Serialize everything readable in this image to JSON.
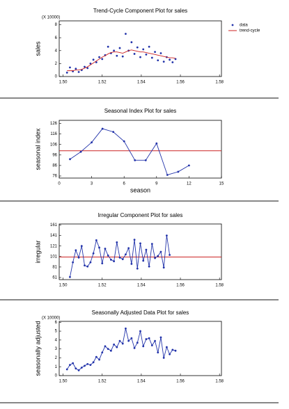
{
  "chart_data": [
    {
      "type": "line",
      "title": "Trend-Cycle Component Plot for sales",
      "ylabel": "sales",
      "y_multiplier": "(X 10000)",
      "x": [
        1.502,
        1.5035,
        1.505,
        1.5065,
        1.508,
        1.5095,
        1.511,
        1.5125,
        1.514,
        1.5155,
        1.517,
        1.5185,
        1.52,
        1.5215,
        1.523,
        1.5245,
        1.526,
        1.5275,
        1.529,
        1.5305,
        1.532,
        1.5335,
        1.535,
        1.5365,
        1.538,
        1.5395,
        1.541,
        1.5425,
        1.544,
        1.5455,
        1.547,
        1.5485,
        1.55,
        1.5515,
        1.553,
        1.5545,
        1.556,
        1.5575
      ],
      "series": [
        {
          "name": "data",
          "color": "#2233aa",
          "mode": "markers",
          "values": [
            0.6,
            1.4,
            0.8,
            1.2,
            0.7,
            1.0,
            1.5,
            1.3,
            2.0,
            2.6,
            2.2,
            3.0,
            2.7,
            3.3,
            4.6,
            3.6,
            4.0,
            3.2,
            4.4,
            3.1,
            6.6,
            4.0,
            5.3,
            3.5,
            4.5,
            3.0,
            4.2,
            3.4,
            4.6,
            2.9,
            3.8,
            2.5,
            3.6,
            2.3,
            3.0,
            2.6,
            2.2,
            2.7
          ]
        },
        {
          "name": "trend-cycle",
          "color": "#cc2222",
          "mode": "lines",
          "values": [
            0.9,
            0.9,
            0.9,
            1.0,
            1.0,
            1.1,
            1.3,
            1.5,
            1.8,
            2.1,
            2.4,
            2.7,
            3.0,
            3.2,
            3.5,
            3.7,
            3.8,
            3.8,
            3.7,
            3.6,
            3.8,
            4.0,
            4.1,
            4.0,
            3.9,
            3.8,
            3.8,
            3.7,
            3.6,
            3.5,
            3.4,
            3.3,
            3.2,
            3.1,
            3.0,
            2.9,
            2.9,
            2.8
          ]
        }
      ],
      "xlim": [
        1.498,
        1.581
      ],
      "xticks": [
        {
          "value": 1.5,
          "label": "1.50"
        },
        1.52,
        1.54,
        1.56,
        1.58
      ],
      "ylim": [
        0,
        8.6
      ],
      "yticks": [
        0,
        2,
        4,
        6,
        8
      ],
      "legend": "right"
    },
    {
      "type": "line",
      "title": "Seasonal Index Plot for sales",
      "xlabel": "season",
      "ylabel": "seasonal index",
      "x": [
        1,
        2,
        3,
        4,
        5,
        6,
        7,
        8,
        9,
        10,
        11,
        12
      ],
      "series": [
        {
          "color": "#2233aa",
          "mode": "lines+markers",
          "values": [
            92,
            99,
            108,
            121,
            118,
            109,
            91,
            91,
            107,
            77,
            80,
            86
          ]
        }
      ],
      "hline": 100,
      "hline_color": "#cc2222",
      "xlim": [
        0,
        15
      ],
      "xticks": [
        0,
        3,
        6,
        9,
        12,
        15
      ],
      "ylim": [
        74,
        129
      ],
      "yticks": [
        76,
        86,
        96,
        106,
        116,
        126
      ]
    },
    {
      "type": "line",
      "title": "Irregular Component Plot for sales",
      "ylabel": "irregular",
      "x": [
        1.5035,
        1.505,
        1.5065,
        1.508,
        1.5095,
        1.511,
        1.5125,
        1.514,
        1.5155,
        1.517,
        1.5185,
        1.52,
        1.5215,
        1.523,
        1.5245,
        1.526,
        1.5275,
        1.529,
        1.5305,
        1.532,
        1.5335,
        1.535,
        1.5365,
        1.538,
        1.5395,
        1.541,
        1.5425,
        1.544,
        1.5455,
        1.547,
        1.5485,
        1.55,
        1.5515,
        1.553,
        1.5545
      ],
      "series": [
        {
          "color": "#2233aa",
          "mode": "lines+markers",
          "values": [
            62,
            90,
            113,
            99,
            121,
            84,
            82,
            90,
            107,
            132,
            118,
            88,
            116,
            103,
            95,
            92,
            128,
            99,
            96,
            105,
            117,
            87,
            133,
            78,
            126,
            93,
            114,
            82,
            125,
            98,
            102,
            110,
            80,
            141,
            104
          ]
        }
      ],
      "hline": 100,
      "hline_color": "#cc2222",
      "xlim": [
        1.498,
        1.581
      ],
      "xticks": [
        {
          "value": 1.5,
          "label": "1.50"
        },
        1.52,
        1.54,
        1.56,
        1.58
      ],
      "ylim": [
        57,
        163
      ],
      "yticks": [
        61,
        81,
        101,
        121,
        141,
        161
      ]
    },
    {
      "type": "line",
      "title": "Seasonally Adjusted Data Plot for sales",
      "ylabel": "seasonally adjusted",
      "y_multiplier": "(X 10000)",
      "x": [
        1.502,
        1.5035,
        1.505,
        1.5065,
        1.508,
        1.5095,
        1.511,
        1.5125,
        1.514,
        1.5155,
        1.517,
        1.5185,
        1.52,
        1.5215,
        1.523,
        1.5245,
        1.526,
        1.5275,
        1.529,
        1.5305,
        1.532,
        1.5335,
        1.535,
        1.5365,
        1.538,
        1.5395,
        1.541,
        1.5425,
        1.544,
        1.5455,
        1.547,
        1.5485,
        1.55,
        1.5515,
        1.553,
        1.5545,
        1.556,
        1.5575
      ],
      "series": [
        {
          "color": "#2233aa",
          "mode": "lines+markers",
          "values": [
            0.7,
            1.2,
            1.4,
            0.8,
            0.6,
            0.9,
            1.1,
            1.3,
            1.2,
            1.5,
            2.1,
            1.8,
            2.6,
            3.3,
            3.0,
            2.8,
            3.5,
            3.2,
            3.9,
            3.6,
            5.3,
            3.9,
            4.2,
            3.1,
            3.7,
            5.0,
            3.3,
            4.1,
            4.2,
            3.4,
            3.9,
            2.6,
            4.3,
            2.0,
            3.2,
            2.4,
            2.9,
            2.8
          ]
        }
      ],
      "xlim": [
        1.498,
        1.581
      ],
      "xticks": [
        {
          "value": 1.5,
          "label": "1.50"
        },
        1.52,
        1.54,
        1.56,
        1.58
      ],
      "ylim": [
        0,
        6.1
      ],
      "yticks": [
        0,
        1,
        2,
        3,
        4,
        5,
        6
      ]
    }
  ]
}
